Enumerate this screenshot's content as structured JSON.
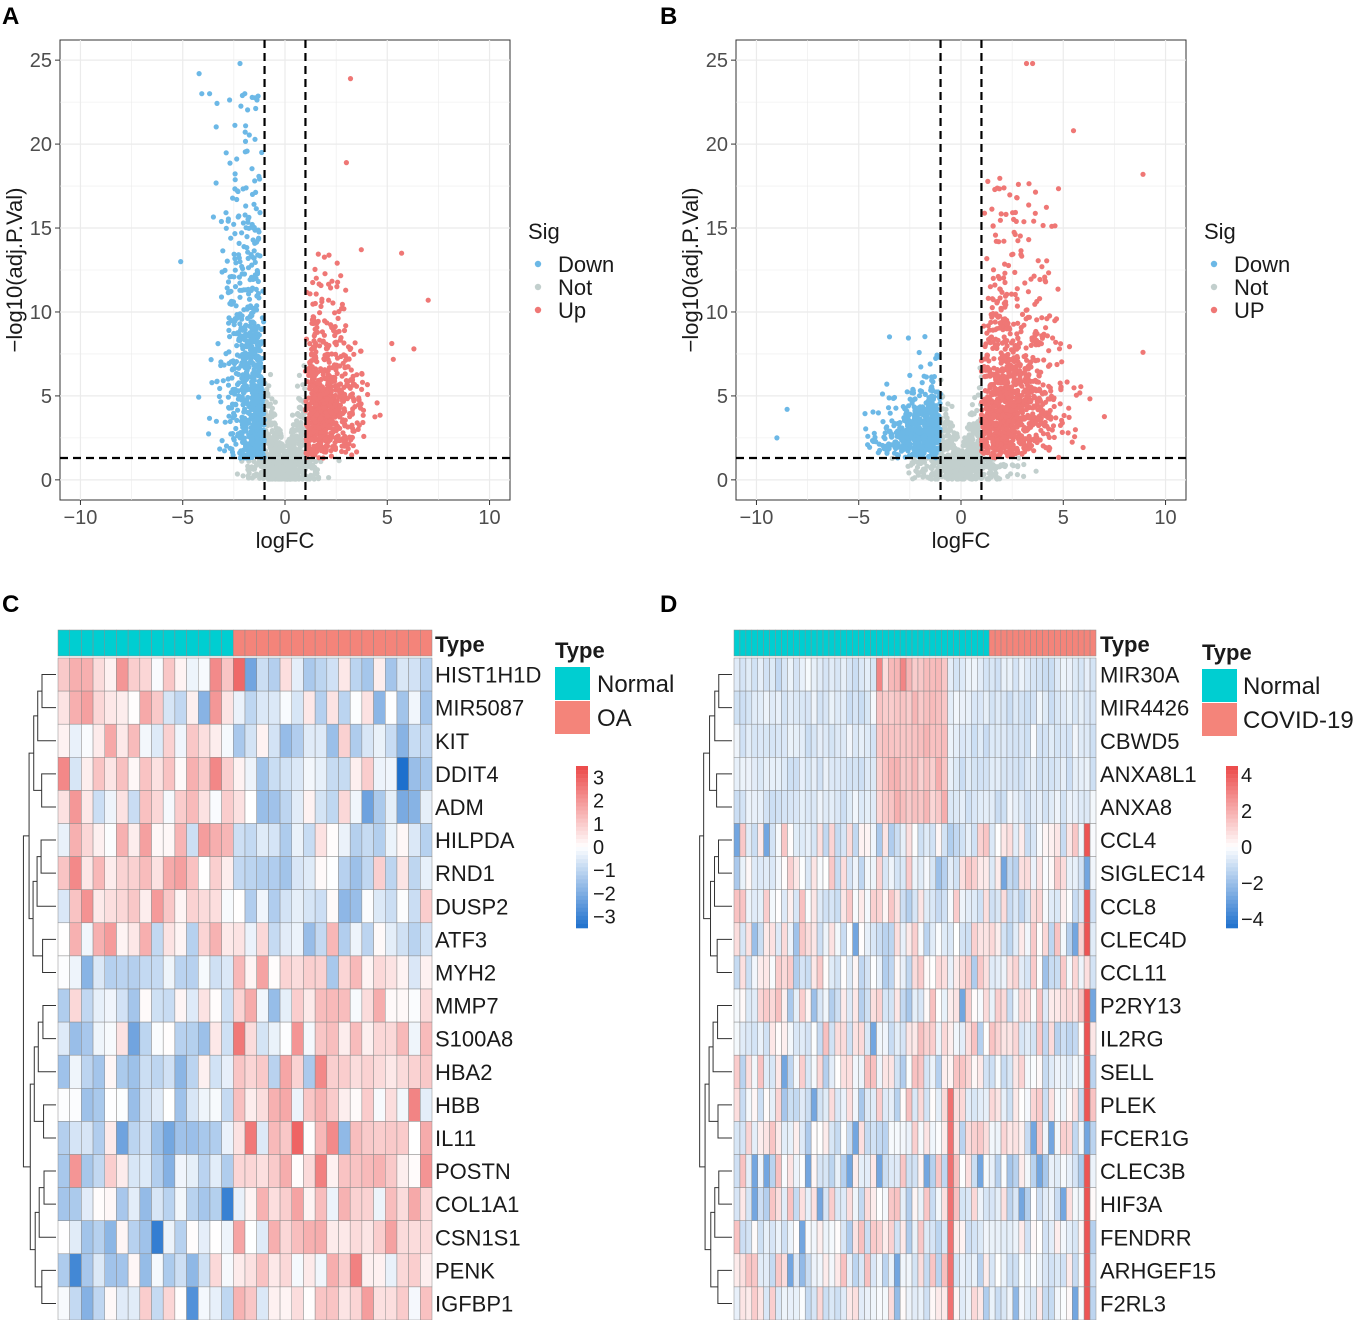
{
  "chart_data": [
    {
      "panel": "A",
      "type": "scatter",
      "title": "",
      "xlabel": "logFC",
      "ylabel": "−log10(adj.P.Val)",
      "xlim": [
        -11,
        11
      ],
      "ylim": [
        -1.2,
        26.2
      ],
      "xticks": [
        -10,
        -5,
        0,
        5,
        10
      ],
      "yticks": [
        0,
        5,
        10,
        15,
        20,
        25
      ],
      "xtick_labels": [
        "−10",
        "−5",
        "0",
        "5",
        "10"
      ],
      "ytick_labels": [
        "0",
        "5",
        "10",
        "15",
        "20",
        "25"
      ],
      "thresholds": {
        "logFC": [
          -1,
          1
        ],
        "neg_log10_p": 1.3
      },
      "legend": {
        "title": "Sig",
        "position": "right",
        "entries": [
          {
            "label": "Down",
            "color": "#6cb8e6"
          },
          {
            "label": "Not",
            "color": "#c2cfcd"
          },
          {
            "label": "Up",
            "color": "#ef7775"
          }
        ]
      },
      "notable_points": [
        {
          "x": -4.2,
          "y": 24.2,
          "sig": "Down"
        },
        {
          "x": -2.2,
          "y": 24.8,
          "sig": "Down"
        },
        {
          "x": -5.1,
          "y": 13.0,
          "sig": "Down"
        },
        {
          "x": 3.2,
          "y": 23.9,
          "sig": "Up"
        },
        {
          "x": 3.0,
          "y": 18.9,
          "sig": "Up"
        },
        {
          "x": 7.0,
          "y": 10.7,
          "sig": "Up"
        },
        {
          "x": 5.7,
          "y": 13.5,
          "sig": "Up"
        },
        {
          "x": 6.3,
          "y": 7.8,
          "sig": "Up"
        }
      ]
    },
    {
      "panel": "B",
      "type": "scatter",
      "title": "",
      "xlabel": "logFC",
      "ylabel": "−log10(adj.P.Val)",
      "xlim": [
        -11,
        11
      ],
      "ylim": [
        -1.2,
        26.2
      ],
      "xticks": [
        -10,
        -5,
        0,
        5,
        10
      ],
      "yticks": [
        0,
        5,
        10,
        15,
        20,
        25
      ],
      "xtick_labels": [
        "−10",
        "−5",
        "0",
        "5",
        "10"
      ],
      "ytick_labels": [
        "0",
        "5",
        "10",
        "15",
        "20",
        "25"
      ],
      "thresholds": {
        "logFC": [
          -1,
          1
        ],
        "neg_log10_p": 1.3
      },
      "legend": {
        "title": "Sig",
        "position": "right",
        "entries": [
          {
            "label": "Down",
            "color": "#6cb8e6"
          },
          {
            "label": "Not",
            "color": "#c2cfcd"
          },
          {
            "label": "UP",
            "color": "#ef7775"
          }
        ]
      },
      "notable_points": [
        {
          "x": -9.0,
          "y": 2.5,
          "sig": "Down"
        },
        {
          "x": -8.5,
          "y": 4.2,
          "sig": "Down"
        },
        {
          "x": 3.5,
          "y": 24.8,
          "sig": "UP"
        },
        {
          "x": 3.2,
          "y": 24.8,
          "sig": "UP"
        },
        {
          "x": 5.5,
          "y": 20.8,
          "sig": "UP"
        },
        {
          "x": 8.9,
          "y": 18.2,
          "sig": "UP"
        },
        {
          "x": 8.9,
          "y": 7.6,
          "sig": "UP"
        }
      ]
    },
    {
      "panel": "C",
      "type": "heatmap",
      "column_annotation_title": "Type",
      "groups": [
        {
          "label": "Normal",
          "count": 15,
          "color": "#00ced1"
        },
        {
          "label": "OA",
          "count": 17,
          "color": "#f4847a"
        }
      ],
      "rows": [
        "HIST1H1D",
        "MIR5087",
        "KIT",
        "DDIT4",
        "ADM",
        "HILPDA",
        "RND1",
        "DUSP2",
        "ATF3",
        "MYH2",
        "MMP7",
        "S100A8",
        "HBA2",
        "HBB",
        "IL11",
        "POSTN",
        "COL1A1",
        "CSN1S1",
        "PENK",
        "IGFBP1"
      ],
      "row_trend": [
        1,
        1,
        1,
        1,
        1,
        1,
        1,
        1,
        1,
        -1,
        -1,
        -1,
        -1,
        -1,
        -1,
        -1,
        -1,
        -1,
        -1,
        -1
      ],
      "colorbar": {
        "min": -3.5,
        "max": 3.5,
        "ticks": [
          3,
          2,
          1,
          0,
          -1,
          -2,
          -3
        ],
        "tick_labels": [
          "3",
          "2",
          "1",
          "0",
          "−1",
          "−2",
          "−3"
        ]
      },
      "legend_title": "Type"
    },
    {
      "panel": "D",
      "type": "heatmap",
      "column_annotation_title": "Type",
      "groups": [
        {
          "label": "Normal",
          "count": 43,
          "color": "#00ced1"
        },
        {
          "label": "COVID-19",
          "count": 18,
          "color": "#f4847a"
        }
      ],
      "rows": [
        "MIR30A",
        "MIR4426",
        "CBWD5",
        "ANXA8L1",
        "ANXA8",
        "CCL4",
        "SIGLEC14",
        "CCL8",
        "CLEC4D",
        "CCL11",
        "P2RY13",
        "IL2RG",
        "SELL",
        "PLEK",
        "FCER1G",
        "CLEC3B",
        "HIF3A",
        "FENDRR",
        "ARHGEF15",
        "F2RL3"
      ],
      "colorbar": {
        "min": -4.5,
        "max": 4.5,
        "ticks": [
          4,
          2,
          0,
          -2,
          -4
        ],
        "tick_labels": [
          "4",
          "2",
          "0",
          "−2",
          "−4"
        ]
      },
      "legend_title": "Type"
    }
  ],
  "panel_labels": [
    "A",
    "B",
    "C",
    "D"
  ]
}
